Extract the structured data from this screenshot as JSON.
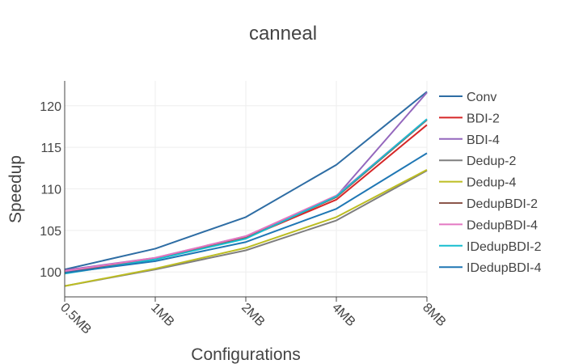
{
  "chart_data": {
    "type": "line",
    "title": "canneal",
    "xlabel": "Configurations",
    "ylabel": "Speedup",
    "categories": [
      "0.5MB",
      "1MB",
      "2MB",
      "4MB",
      "8MB"
    ],
    "ylim": [
      97,
      123
    ],
    "yticks": [
      100,
      105,
      110,
      115,
      120
    ],
    "grid": true,
    "legend_position": "right",
    "series": [
      {
        "name": "Conv",
        "color": "#2e6da4",
        "values": [
          100.3,
          102.8,
          106.6,
          112.9,
          121.7
        ]
      },
      {
        "name": "BDI-2",
        "color": "#d62728",
        "values": [
          100.2,
          101.6,
          104.1,
          108.7,
          117.7
        ]
      },
      {
        "name": "BDI-4",
        "color": "#9467bd",
        "values": [
          100.2,
          101.7,
          104.3,
          109.1,
          121.6
        ]
      },
      {
        "name": "Dedup-2",
        "color": "#7f7f7f",
        "values": [
          98.3,
          100.3,
          102.6,
          106.2,
          112.2
        ]
      },
      {
        "name": "Dedup-4",
        "color": "#bcbd22",
        "values": [
          98.3,
          100.4,
          102.9,
          106.6,
          112.3
        ]
      },
      {
        "name": "DedupBDI-2",
        "color": "#8c564b",
        "values": [
          100.0,
          101.6,
          104.1,
          109.0,
          118.3
        ]
      },
      {
        "name": "DedupBDI-4",
        "color": "#e377c2",
        "values": [
          100.1,
          101.7,
          104.3,
          109.2,
          118.4
        ]
      },
      {
        "name": "IDedupBDI-2",
        "color": "#17becf",
        "values": [
          99.8,
          101.5,
          104.0,
          109.1,
          118.4
        ]
      },
      {
        "name": "IDedupBDI-4",
        "color": "#1f77b4",
        "values": [
          99.9,
          101.3,
          103.6,
          107.6,
          114.3
        ]
      }
    ]
  }
}
